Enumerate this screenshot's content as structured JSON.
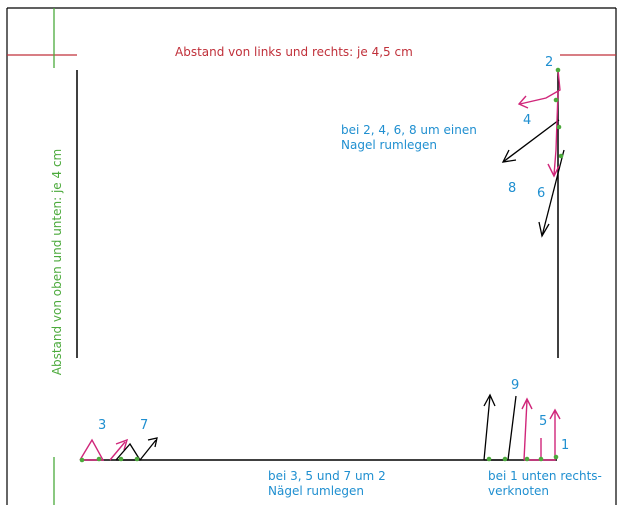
{
  "labels": {
    "top_distance": "Abstand von links und rechts: je 4,5 cm",
    "side_distance": "Abstand von oben und unten: je 4  cm",
    "note_even_line1": "bei 2, 4, 6, 8 um einen",
    "note_even_line2": "Nagel rumlegen",
    "note_odd_line1": "bei 3, 5 und 7 um 2",
    "note_odd_line2": "Nägel rumlegen",
    "note_knot_line1": "bei 1 unten rechts-",
    "note_knot_line2": "verknoten"
  },
  "numbers": {
    "n1": "1",
    "n2": "2",
    "n3": "3",
    "n4": "4",
    "n5": "5",
    "n6": "6",
    "n7": "7",
    "n8": "8",
    "n9": "9"
  },
  "colors": {
    "border": "#000000",
    "measure_red": "#c0303a",
    "thread_pink": "#d0267a",
    "nail_green": "#4caa3c",
    "text_blue": "#1f8fd0"
  }
}
